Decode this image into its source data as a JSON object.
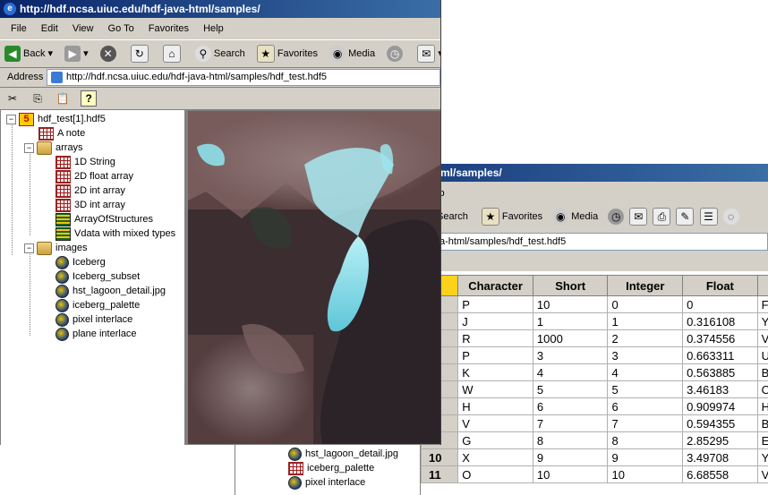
{
  "front_window": {
    "title": "http://hdf.ncsa.uiuc.edu/hdf-java-html/samples/",
    "menu": [
      "File",
      "Edit",
      "View",
      "Go To",
      "Favorites",
      "Help"
    ],
    "toolbar": {
      "back": "Back",
      "search": "Search",
      "favorites": "Favorites",
      "media": "Media"
    },
    "address_label": "Address",
    "address_url": "http://hdf.ncsa.uiuc.edu/hdf-java-html/samples/hdf_test.hdf5",
    "tree": {
      "root": "hdf_test[1].hdf5",
      "note": "A note",
      "arrays_group": "arrays",
      "arrays": [
        "1D String",
        "2D float array",
        "2D int array",
        "3D int array",
        "ArrayOfStructures",
        "Vdata with mixed types"
      ],
      "images_group": "images",
      "images": [
        "Iceberg",
        "Iceberg_subset",
        "hst_lagoon_detail.jpg",
        "iceberg_palette",
        "pixel interlace",
        "plane interlace"
      ]
    }
  },
  "back_window": {
    "title": "ml/samples/",
    "menu_partial": "lp",
    "toolbar": {
      "search": "Search",
      "favorites": "Favorites",
      "media": "Media"
    },
    "address_partial": "a-html/samples/hdf_test.hdf5",
    "tree_partial": [
      "hst_lagoon_detail.jpg",
      "iceberg_palette",
      "pixel interlace"
    ],
    "table": {
      "columns": [
        "Character",
        "Short",
        "Integer",
        "Float",
        "S"
      ],
      "row_headers": [
        "1",
        "2",
        "3",
        "4",
        "5",
        "6",
        "7",
        "8",
        "9",
        "10",
        "11"
      ],
      "rows": [
        [
          "P",
          "10",
          "0",
          "0",
          "FOD"
        ],
        [
          "J",
          "1",
          "1",
          "0.316108",
          "YFO"
        ],
        [
          "R",
          "1000",
          "2",
          "0.374556",
          "VMV"
        ],
        [
          "P",
          "3",
          "3",
          "0.663311",
          "UUN"
        ],
        [
          "K",
          "4",
          "4",
          "0.563885",
          "BCO"
        ],
        [
          "W",
          "5",
          "5",
          "3.46183",
          "OFL"
        ],
        [
          "H",
          "6",
          "6",
          "0.909974",
          "HFF"
        ],
        [
          "V",
          "7",
          "7",
          "0.594355",
          "BYA"
        ],
        [
          "G",
          "8",
          "8",
          "2.85295",
          "EDX"
        ],
        [
          "X",
          "9",
          "9",
          "3.49708",
          "YHX"
        ],
        [
          "O",
          "10",
          "10",
          "6.68558",
          "VHE"
        ]
      ]
    }
  }
}
